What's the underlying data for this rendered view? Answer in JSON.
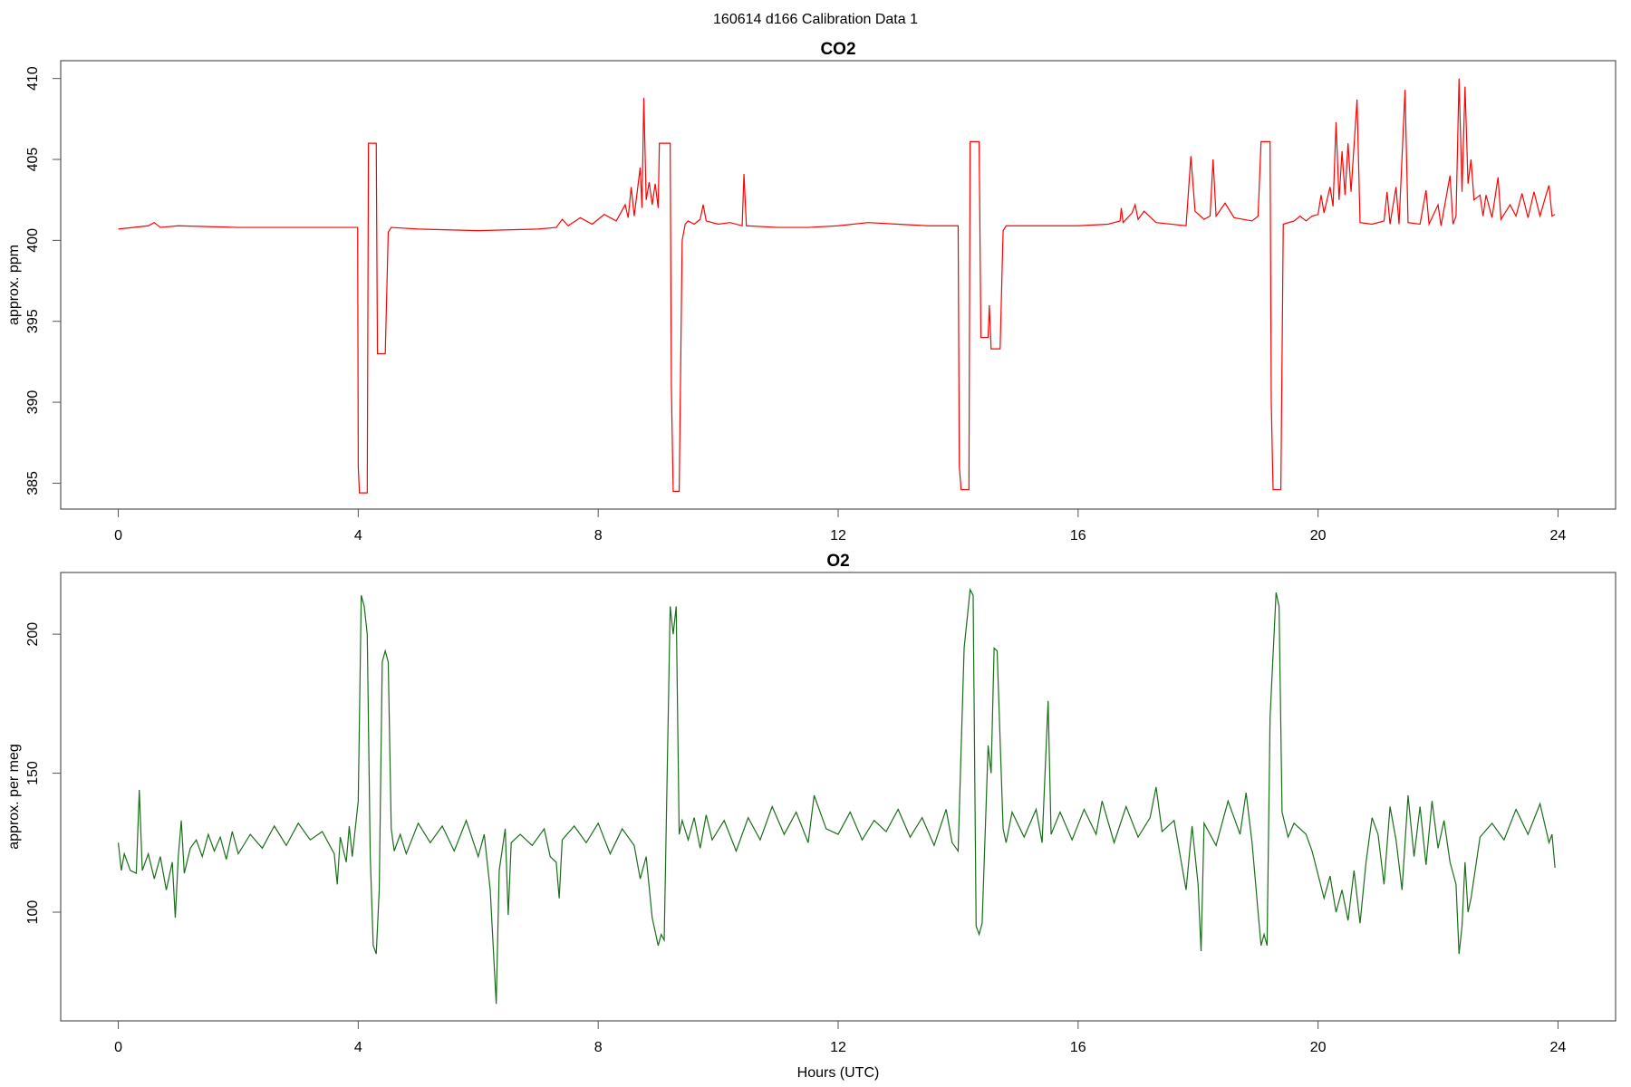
{
  "title": "160614   d166   Calibration Data 1",
  "chart_data": [
    {
      "type": "line",
      "title": "CO2",
      "y_label": "approx. ppm",
      "color": "#ff0000",
      "xlim": [
        -0.96,
        24.96
      ],
      "ylim": [
        383.4,
        411.1
      ],
      "xticks": [
        0,
        4,
        8,
        12,
        16,
        20,
        24
      ],
      "yticks": [
        385,
        390,
        395,
        400,
        405,
        410
      ],
      "x": [
        0,
        0.5,
        0.6,
        0.7,
        1,
        2,
        3,
        3.99,
        4.0,
        4.02,
        4.15,
        4.17,
        4.3,
        4.32,
        4.45,
        4.5,
        4.55,
        5,
        6,
        7,
        7.3,
        7.4,
        7.5,
        7.7,
        7.9,
        8.1,
        8.3,
        8.45,
        8.5,
        8.55,
        8.6,
        8.7,
        8.73,
        8.76,
        8.8,
        8.85,
        8.9,
        8.95,
        9.0,
        9.02,
        9.2,
        9.22,
        9.25,
        9.35,
        9.4,
        9.45,
        9.5,
        9.6,
        9.7,
        9.75,
        9.8,
        10,
        10.2,
        10.4,
        10.43,
        10.47,
        11,
        11.5,
        12,
        12.5,
        13,
        13.5,
        14.0,
        14.02,
        14.05,
        14.18,
        14.2,
        14.35,
        14.38,
        14.5,
        14.52,
        14.55,
        14.7,
        14.75,
        14.8,
        15.5,
        16,
        16.5,
        16.7,
        16.72,
        16.75,
        16.9,
        16.95,
        17.0,
        17.1,
        17.3,
        17.8,
        17.88,
        17.95,
        18.1,
        18.2,
        18.25,
        18.3,
        18.45,
        18.6,
        18.9,
        19.0,
        19.05,
        19.2,
        19.22,
        19.25,
        19.38,
        19.42,
        19.6,
        19.7,
        19.8,
        19.9,
        20.0,
        20.05,
        20.1,
        20.2,
        20.25,
        20.3,
        20.35,
        20.4,
        20.45,
        20.5,
        20.55,
        20.65,
        20.7,
        20.9,
        21.1,
        21.15,
        21.2,
        21.3,
        21.35,
        21.45,
        21.5,
        21.7,
        21.8,
        21.85,
        22.0,
        22.05,
        22.2,
        22.25,
        22.3,
        22.35,
        22.4,
        22.45,
        22.5,
        22.55,
        22.6,
        22.7,
        22.75,
        22.8,
        22.9,
        23.0,
        23.05,
        23.2,
        23.3,
        23.4,
        23.5,
        23.6,
        23.7,
        23.8,
        23.85,
        23.9,
        23.95
      ],
      "values": [
        400.7,
        400.9,
        401.1,
        400.8,
        400.9,
        400.8,
        400.8,
        400.8,
        386,
        384.4,
        384.4,
        406,
        406,
        393,
        393,
        400.5,
        400.8,
        400.7,
        400.6,
        400.7,
        400.8,
        401.3,
        400.9,
        401.4,
        401.0,
        401.6,
        401.2,
        402.2,
        401.4,
        403.3,
        401.5,
        404.5,
        402.0,
        408.8,
        402.5,
        403.6,
        402.2,
        403.5,
        402,
        406,
        406,
        391,
        384.5,
        384.5,
        400,
        401,
        401.2,
        401,
        401.3,
        402.2,
        401.2,
        401.0,
        401.1,
        400.9,
        404.1,
        400.9,
        400.8,
        400.8,
        400.9,
        401.1,
        401.0,
        400.9,
        400.9,
        386,
        384.6,
        384.6,
        406.1,
        406.1,
        394,
        394,
        396,
        393.3,
        393.3,
        400.6,
        400.9,
        400.9,
        400.9,
        401.0,
        401.2,
        402,
        401.1,
        401.7,
        402.2,
        401.3,
        401.8,
        401.1,
        400.9,
        405.2,
        401.8,
        401.3,
        401.5,
        405,
        401.5,
        402.3,
        401.4,
        401.2,
        401.5,
        406.1,
        406.1,
        390,
        384.6,
        384.6,
        401.0,
        401.2,
        401.5,
        401.2,
        401.5,
        401.6,
        402.8,
        401.7,
        403.3,
        402.1,
        407.3,
        402.5,
        405.5,
        402.8,
        406,
        403,
        408.7,
        401.1,
        401.0,
        401.2,
        403,
        401.0,
        403.3,
        401.0,
        409.3,
        401.1,
        401.0,
        403.1,
        401.0,
        402.2,
        400.9,
        404,
        401.0,
        401.5,
        410,
        403,
        409.5,
        403.5,
        405,
        402.5,
        402.8,
        401.5,
        402.8,
        401.4,
        403.9,
        401.3,
        402.2,
        401.5,
        402.9,
        401.4,
        403.0,
        401.5,
        402.8,
        403.4,
        401.5,
        401.6
      ]
    },
    {
      "type": "line",
      "title": "O2",
      "y_label": "approx. per meg",
      "x_label": "Hours (UTC)",
      "color": "#1a6e1a",
      "xlim": [
        -0.96,
        24.96
      ],
      "ylim": [
        60.9,
        222.2
      ],
      "xticks": [
        0,
        4,
        8,
        12,
        16,
        20,
        24
      ],
      "yticks": [
        100,
        150,
        200
      ],
      "x": [
        0,
        0.05,
        0.1,
        0.2,
        0.3,
        0.35,
        0.4,
        0.5,
        0.6,
        0.7,
        0.8,
        0.9,
        0.95,
        1.0,
        1.05,
        1.1,
        1.2,
        1.3,
        1.4,
        1.5,
        1.6,
        1.7,
        1.8,
        1.9,
        2.0,
        2.2,
        2.4,
        2.6,
        2.8,
        3.0,
        3.2,
        3.4,
        3.6,
        3.65,
        3.7,
        3.8,
        3.85,
        3.9,
        4.0,
        4.05,
        4.1,
        4.15,
        4.2,
        4.25,
        4.3,
        4.35,
        4.4,
        4.45,
        4.5,
        4.55,
        4.6,
        4.7,
        4.8,
        5.0,
        5.2,
        5.4,
        5.6,
        5.8,
        6.0,
        6.1,
        6.2,
        6.3,
        6.35,
        6.45,
        6.5,
        6.55,
        6.7,
        6.9,
        7.1,
        7.2,
        7.3,
        7.35,
        7.4,
        7.6,
        7.8,
        8.0,
        8.2,
        8.4,
        8.6,
        8.7,
        8.8,
        8.9,
        9.0,
        9.05,
        9.1,
        9.2,
        9.25,
        9.3,
        9.35,
        9.4,
        9.5,
        9.6,
        9.7,
        9.8,
        9.9,
        10.1,
        10.3,
        10.5,
        10.7,
        10.9,
        11.1,
        11.3,
        11.5,
        11.6,
        11.8,
        12.0,
        12.2,
        12.4,
        12.6,
        12.8,
        13.0,
        13.2,
        13.4,
        13.6,
        13.8,
        13.9,
        14.0,
        14.1,
        14.2,
        14.25,
        14.3,
        14.35,
        14.4,
        14.5,
        14.55,
        14.6,
        14.65,
        14.75,
        14.8,
        14.9,
        15.1,
        15.3,
        15.4,
        15.5,
        15.55,
        15.7,
        15.9,
        16.1,
        16.3,
        16.4,
        16.6,
        16.8,
        17.0,
        17.2,
        17.3,
        17.4,
        17.6,
        17.8,
        17.9,
        18.0,
        18.05,
        18.1,
        18.3,
        18.5,
        18.7,
        18.8,
        18.9,
        19.0,
        19.05,
        19.1,
        19.15,
        19.2,
        19.3,
        19.35,
        19.4,
        19.5,
        19.6,
        19.8,
        19.9,
        20.1,
        20.2,
        20.3,
        20.4,
        20.5,
        20.6,
        20.7,
        20.8,
        20.9,
        21.0,
        21.1,
        21.2,
        21.3,
        21.4,
        21.5,
        21.6,
        21.7,
        21.8,
        21.9,
        22.0,
        22.1,
        22.2,
        22.3,
        22.35,
        22.4,
        22.45,
        22.5,
        22.55,
        22.7,
        22.9,
        23.1,
        23.3,
        23.5,
        23.7,
        23.85,
        23.9,
        23.95
      ],
      "values": [
        125,
        115,
        121,
        115,
        114,
        144,
        115,
        121,
        112,
        120,
        108,
        118,
        98,
        120,
        133,
        114,
        123,
        126,
        120,
        128,
        122,
        127,
        119,
        129,
        121,
        128,
        123,
        131,
        124,
        132,
        126,
        129,
        121,
        110,
        127,
        118,
        131,
        120,
        140,
        214,
        210,
        200,
        120,
        88,
        85,
        108,
        190,
        194,
        190,
        130,
        122,
        128,
        121,
        132,
        125,
        131,
        122,
        133,
        120,
        128,
        108,
        67,
        115,
        130,
        99,
        125,
        128,
        124,
        130,
        120,
        118,
        105,
        126,
        131,
        125,
        132,
        121,
        130,
        124,
        112,
        120,
        98,
        88,
        92,
        90,
        210,
        200,
        210,
        128,
        133,
        126,
        134,
        123,
        135,
        126,
        133,
        122,
        134,
        126,
        138,
        128,
        136,
        125,
        142,
        130,
        128,
        136,
        126,
        133,
        129,
        137,
        127,
        134,
        124,
        137,
        125,
        122,
        195,
        216,
        214,
        95,
        92,
        96,
        160,
        150,
        195,
        194,
        130,
        125,
        136,
        127,
        137,
        125,
        176,
        128,
        136,
        126,
        137,
        128,
        140,
        125,
        138,
        127,
        134,
        145,
        129,
        133,
        108,
        131,
        110,
        86,
        132,
        124,
        140,
        128,
        143,
        125,
        100,
        88,
        92,
        88,
        170,
        215,
        210,
        136,
        127,
        132,
        128,
        122,
        105,
        113,
        100,
        108,
        97,
        115,
        96,
        118,
        134,
        128,
        110,
        138,
        126,
        108,
        142,
        120,
        138,
        117,
        140,
        123,
        133,
        118,
        110,
        85,
        95,
        118,
        100,
        105,
        127,
        132,
        126,
        137,
        128,
        139,
        125,
        128,
        116
      ]
    }
  ]
}
